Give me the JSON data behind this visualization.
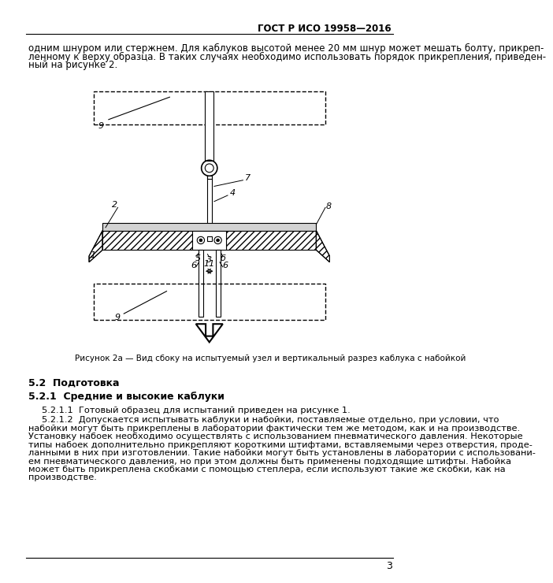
{
  "title": "ГОСТ Р ИСО 19958—2016",
  "page_number": "3",
  "top_paragraph": "одним шнуром или стержнем. Для каблуков высотой менее 20 мм шнур может мешать болту, прикреп-\nленному к верху образца. В таких случаях необходимо использовать порядок прикрепления, приведен-\nный на рисунке 2.",
  "figure_caption": "Рисунок 2а — Вид сбоку на испытуемый узел и вертикальный разрез каблука с набойкой",
  "section_52": "5.2  Подготовка",
  "section_521": "5.2.1  Средние и высокие каблуки",
  "para_5211": "5.2.1.1  Готовый образец для испытаний приведен на рисунке 1.",
  "para_5212_first": "5.2.1.2  Допускается испытывать каблуки и набойки, поставляемые отдельно, при условии, что",
  "para_5212_rest": "набойки могут быть прикреплены в лаборатории фактически тем же методом, как и на производстве.\nУстановку набоек необходимо осуществлять с использованием пневматического давления. Некоторые\nтипы набоек дополнительно прикрепляют короткими штифтами, вставляемыми через отверстия, проде-\nланными в них при изготовлении. Такие набойки могут быть установлены в лаборатории с использовани-\nем пневматического давления, но при этом должны быть применены подходящие штифты. Набойка\nможет быть прикреплена скобками с помощью степлера, если используют такие же скобки, как на\nпроизводстве.",
  "background_color": "#ffffff",
  "text_color": "#000000"
}
